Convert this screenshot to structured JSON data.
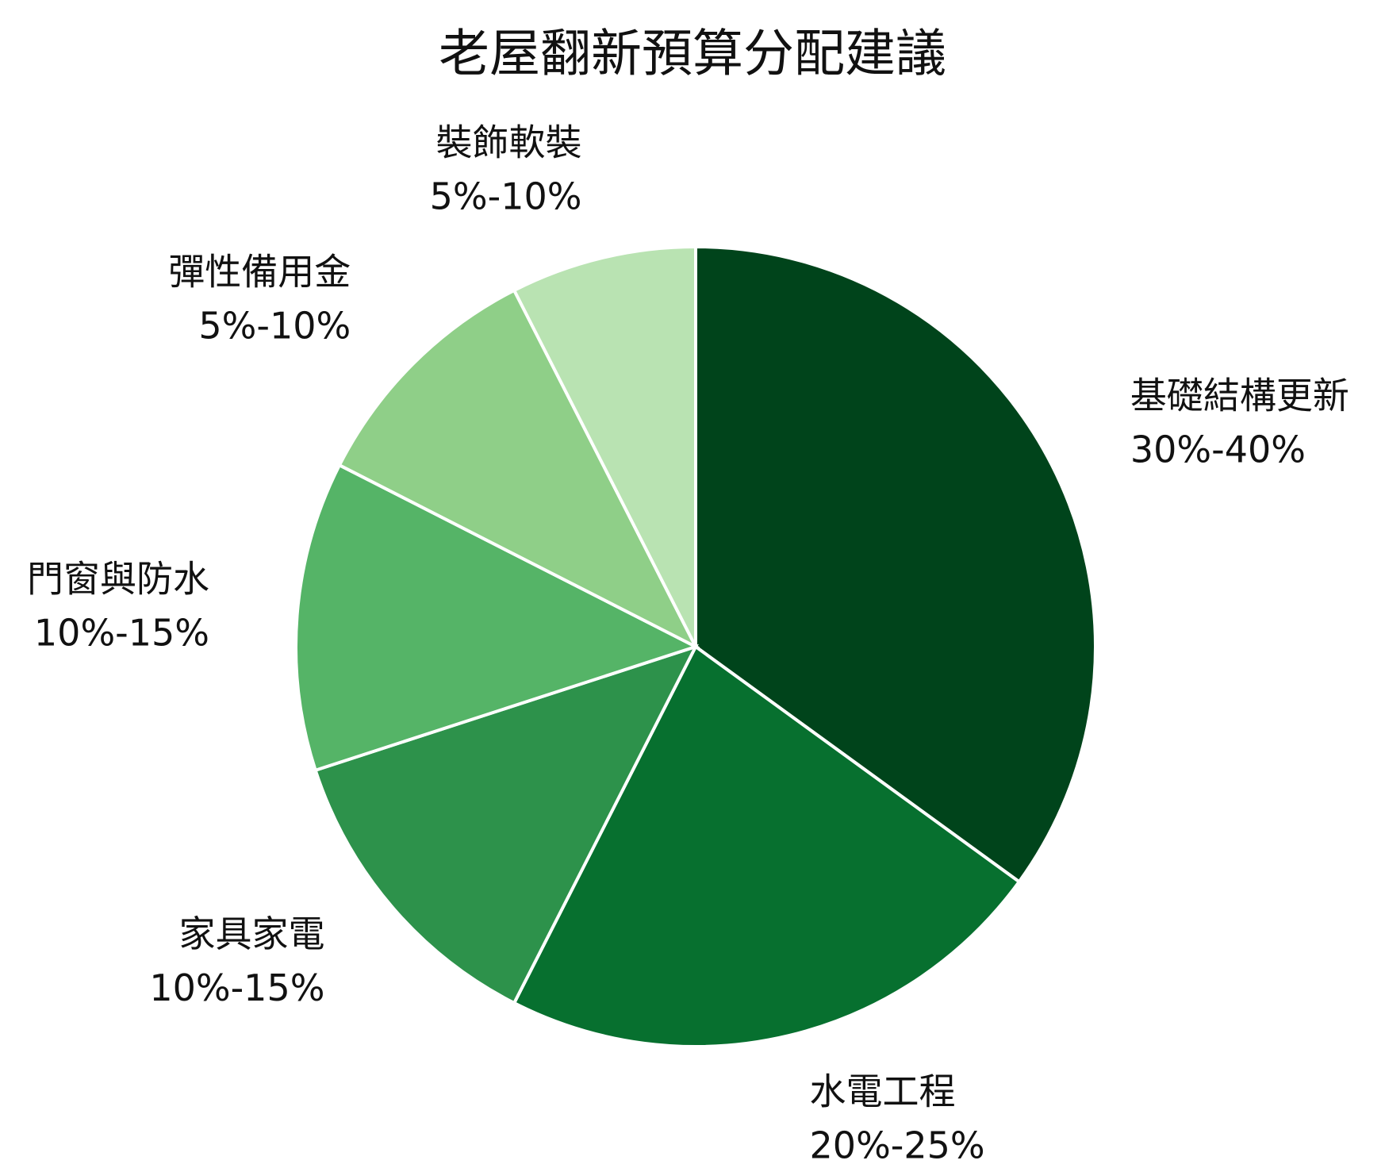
{
  "chart_data": {
    "type": "pie",
    "title": "老屋翻新預算分配建議",
    "categories": [
      "基礎結構更新",
      "水電工程",
      "家具家電",
      "門窗與防水",
      "彈性備用金",
      "裝飾軟裝"
    ],
    "values": [
      35,
      22.5,
      12.5,
      12.5,
      10,
      7.5
    ],
    "ranges": [
      "30%-40%",
      "20%-25%",
      "10%-15%",
      "10%-15%",
      "5%-10%",
      "5%-10%"
    ],
    "colors": [
      "#00441b",
      "#07702f",
      "#2d924b",
      "#55b467",
      "#8fcf88",
      "#b9e3b2"
    ],
    "start_angle": 0,
    "direction": "clockwise"
  }
}
